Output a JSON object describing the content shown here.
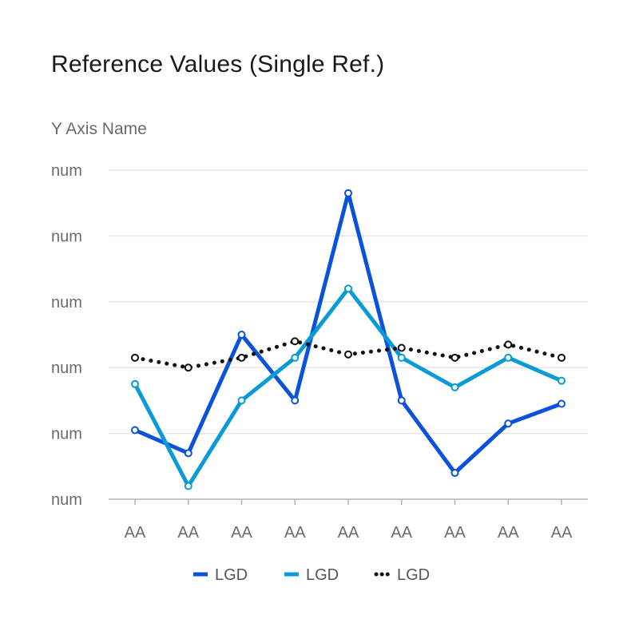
{
  "chart_data": {
    "type": "line",
    "title": "Reference Values (Single Ref.)",
    "ylabel": "Y Axis Name",
    "xlabel": "",
    "categories": [
      "AA",
      "AA",
      "AA",
      "AA",
      "AA",
      "AA",
      "AA",
      "AA",
      "AA"
    ],
    "y_tick_labels": [
      "num",
      "num",
      "num",
      "num",
      "num",
      "num"
    ],
    "ylim": [
      0,
      100
    ],
    "grid": true,
    "legend_position": "bottom",
    "series": [
      {
        "name": "LGD",
        "color": "#0a52d9",
        "style": "solid",
        "values": [
          21,
          14,
          50,
          30,
          93,
          30,
          8,
          23,
          29
        ]
      },
      {
        "name": "LGD",
        "color": "#0a9ad6",
        "style": "solid",
        "values": [
          35,
          4,
          30,
          43,
          64,
          43,
          34,
          43,
          36
        ]
      },
      {
        "name": "LGD",
        "color": "#111111",
        "style": "dotted",
        "values": [
          43,
          40,
          43,
          48,
          44,
          46,
          43,
          47,
          43
        ]
      }
    ]
  }
}
